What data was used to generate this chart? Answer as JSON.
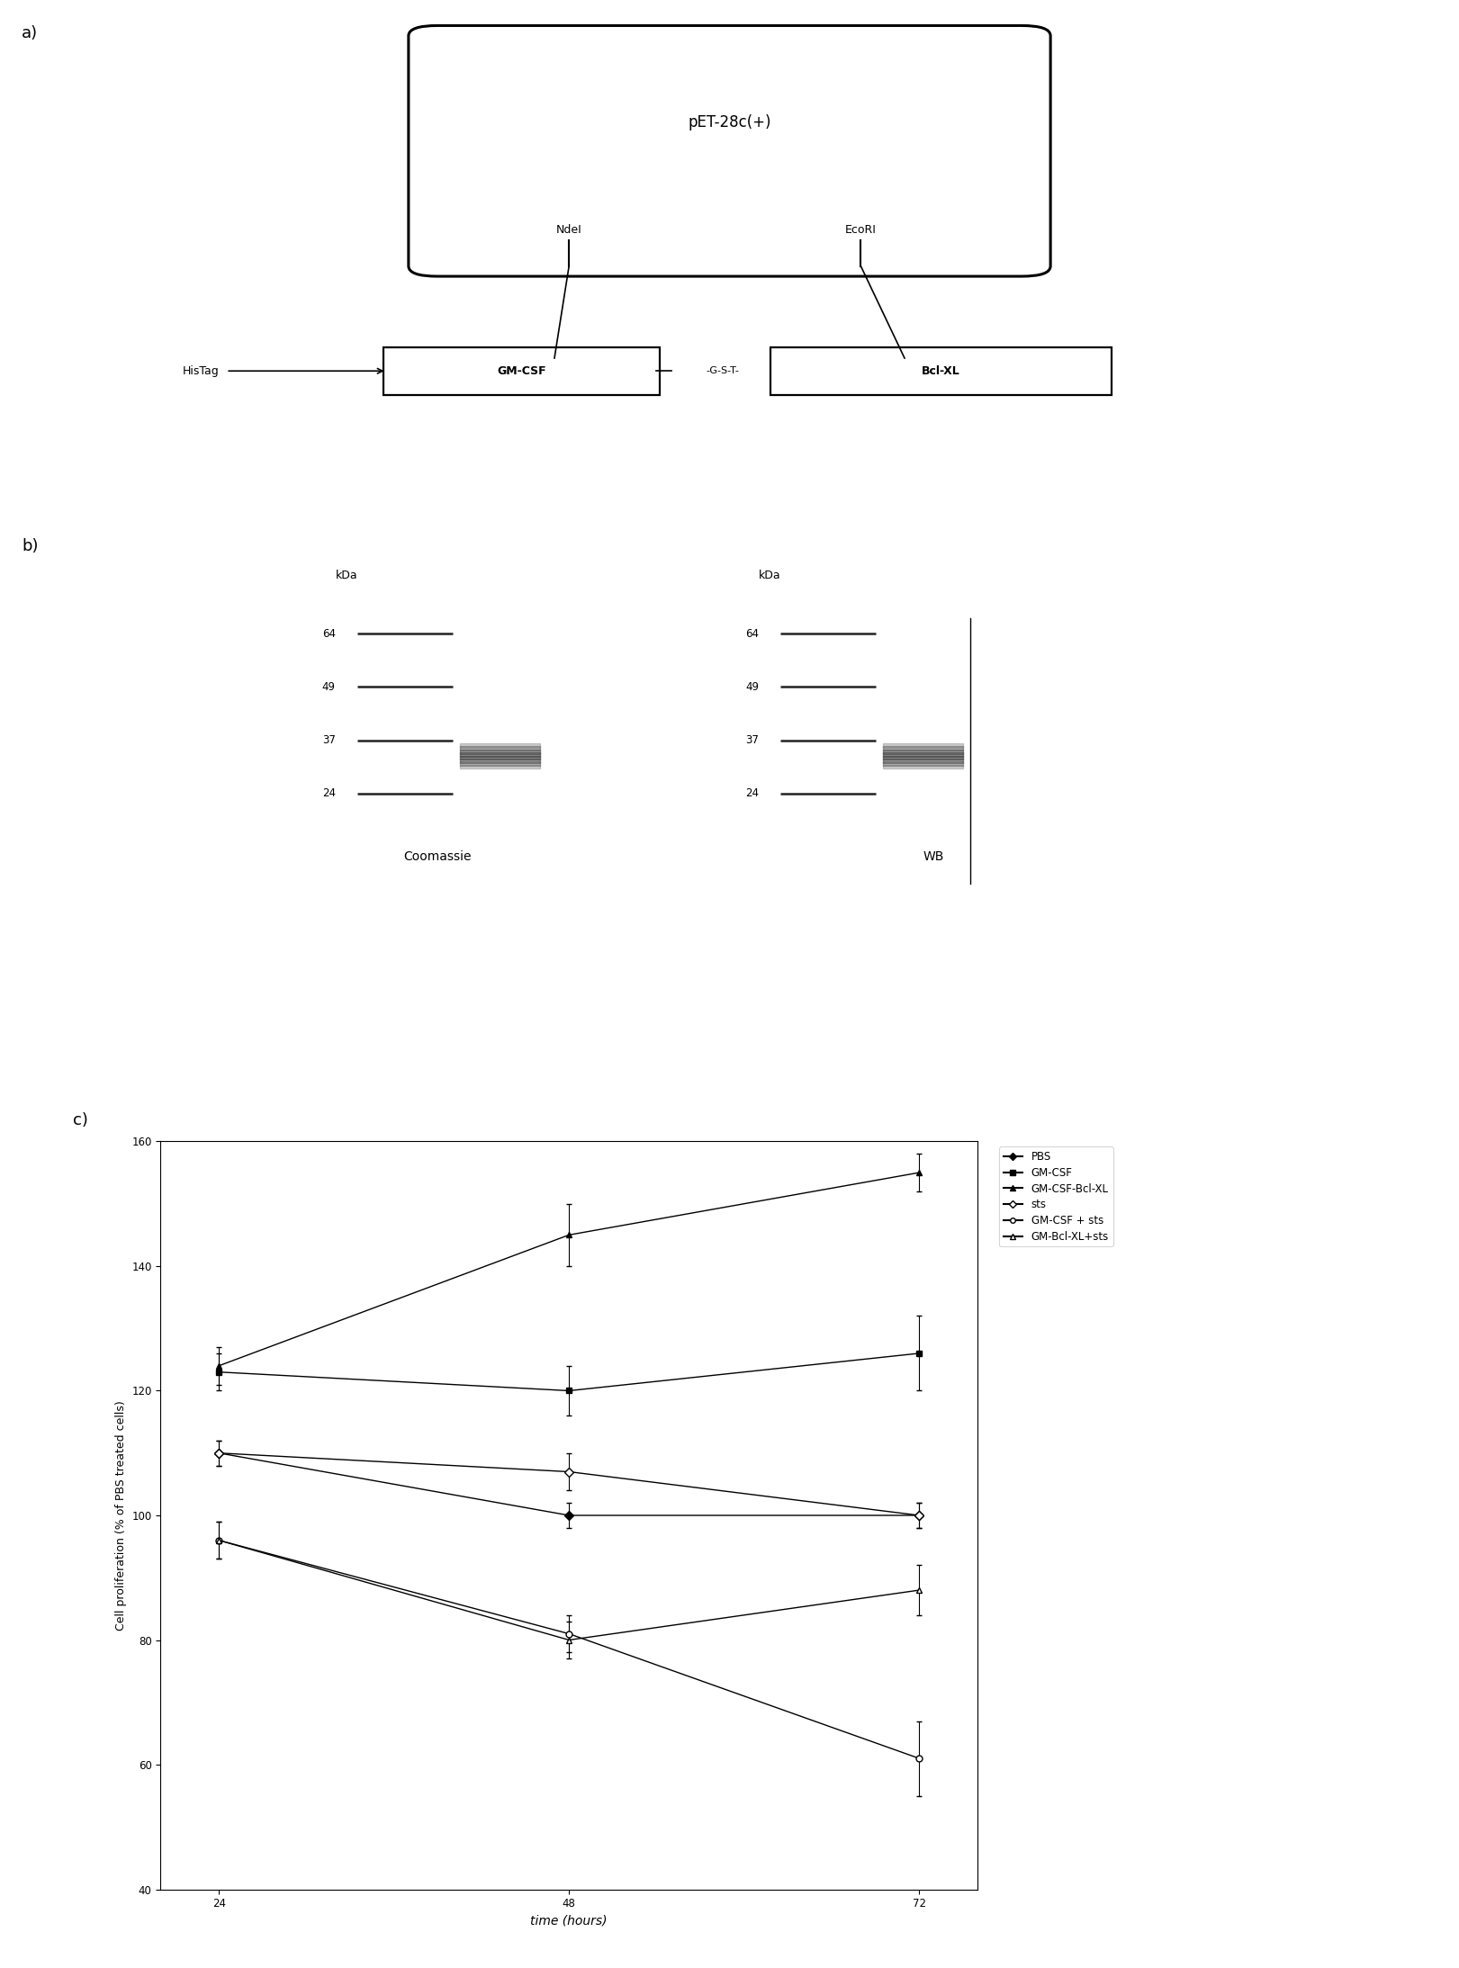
{
  "panel_a": {
    "plasmid_label": "pET-28c(+)",
    "ndei_label": "NdeI",
    "ecori_label": "EcoRI",
    "histag_label": "HisTag",
    "gmcsf_label": "GM-CSF",
    "gst_label": "-G-S-T-",
    "bclxl_label": "Bcl-XL"
  },
  "panel_b": {
    "coomassie_label": "Coomassie",
    "wb_label": "WB",
    "kdas_label": "kDa",
    "bands": [
      64,
      49,
      37,
      24
    ]
  },
  "panel_c": {
    "xlabel": "time (hours)",
    "ylabel": "Cell proliferation (% of PBS treated cells)",
    "xvals": [
      24,
      48,
      72
    ],
    "ylim": [
      40,
      160
    ],
    "yticks": [
      40,
      60,
      80,
      100,
      120,
      140,
      160
    ],
    "xticks": [
      24,
      48,
      72
    ],
    "series": {
      "PBS": {
        "y": [
          110,
          100,
          100
        ],
        "yerr": [
          2,
          2,
          2
        ],
        "color": "#000000",
        "marker": "D",
        "markerfacecolor": "#000000",
        "linestyle": "-",
        "markersize": 5,
        "label": "PBS"
      },
      "GM-CSF": {
        "y": [
          123,
          120,
          126
        ],
        "yerr": [
          3,
          4,
          6
        ],
        "color": "#000000",
        "marker": "s",
        "markerfacecolor": "#000000",
        "linestyle": "-",
        "markersize": 5,
        "label": "GM-CSF"
      },
      "GM-CSF-Bcl-XL": {
        "y": [
          124,
          145,
          155
        ],
        "yerr": [
          3,
          5,
          3
        ],
        "color": "#000000",
        "marker": "^",
        "markerfacecolor": "#000000",
        "linestyle": "-",
        "markersize": 5,
        "label": "GM-CSF-Bcl-XL"
      },
      "sts": {
        "y": [
          110,
          107,
          100
        ],
        "yerr": [
          2,
          3,
          2
        ],
        "color": "#000000",
        "marker": "D",
        "markerfacecolor": "#ffffff",
        "linestyle": "-",
        "markersize": 5,
        "label": "sts"
      },
      "GM-CSF + sts": {
        "y": [
          96,
          81,
          61
        ],
        "yerr": [
          3,
          3,
          6
        ],
        "color": "#000000",
        "marker": "o",
        "markerfacecolor": "#ffffff",
        "linestyle": "-",
        "markersize": 5,
        "label": "GM-CSF + sts"
      },
      "GM-Bcl-XL+sts": {
        "y": [
          96,
          80,
          88
        ],
        "yerr": [
          3,
          3,
          4
        ],
        "color": "#000000",
        "marker": "^",
        "markerfacecolor": "#ffffff",
        "linestyle": "-",
        "markersize": 5,
        "label": "GM-Bcl-XL+sts"
      }
    }
  },
  "background_color": "#ffffff",
  "text_color": "#000000"
}
